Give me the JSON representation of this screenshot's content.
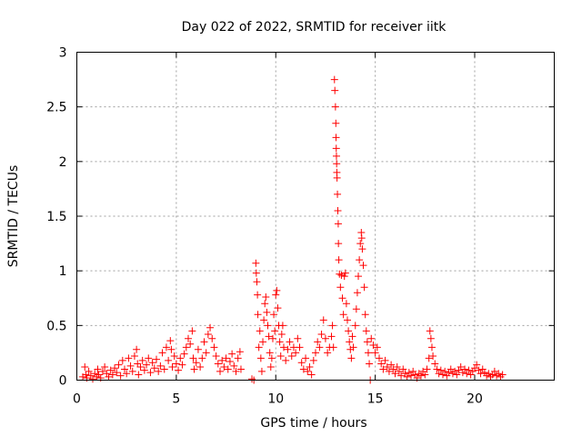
{
  "chart_data": {
    "type": "scatter",
    "title": "Day 022 of 2022, SRMTID for receiver iitk",
    "xlabel": "GPS time / hours",
    "ylabel": "SRMTID / TECUs",
    "xlim": [
      0,
      24
    ],
    "ylim": [
      0,
      3
    ],
    "x_ticks": [
      0,
      5,
      10,
      15,
      20
    ],
    "x_tick_labels": [
      "0",
      "5",
      "10",
      "15",
      "20"
    ],
    "y_ticks": [
      0,
      0.5,
      1,
      1.5,
      2,
      2.5,
      3
    ],
    "y_tick_labels": [
      "0",
      "0.5",
      "1",
      "1.5",
      "2",
      "2.5",
      "3"
    ],
    "grid": true,
    "marker": "+",
    "color": "#ff0000",
    "series": [
      {
        "name": "SRMTID",
        "points": [
          [
            0.3,
            0.03
          ],
          [
            0.4,
            0.12
          ],
          [
            0.45,
            0.05
          ],
          [
            0.5,
            0.02
          ],
          [
            0.6,
            0.08
          ],
          [
            0.7,
            0.04
          ],
          [
            0.8,
            0.01
          ],
          [
            0.9,
            0.06
          ],
          [
            1.0,
            0.03
          ],
          [
            1.05,
            0.1
          ],
          [
            1.1,
            0.05
          ],
          [
            1.2,
            0.02
          ],
          [
            1.3,
            0.08
          ],
          [
            1.4,
            0.12
          ],
          [
            1.5,
            0.06
          ],
          [
            1.6,
            0.03
          ],
          [
            1.7,
            0.09
          ],
          [
            1.8,
            0.05
          ],
          [
            1.9,
            0.11
          ],
          [
            2.0,
            0.07
          ],
          [
            2.1,
            0.14
          ],
          [
            2.2,
            0.04
          ],
          [
            2.3,
            0.18
          ],
          [
            2.4,
            0.1
          ],
          [
            2.5,
            0.06
          ],
          [
            2.6,
            0.2
          ],
          [
            2.7,
            0.13
          ],
          [
            2.8,
            0.08
          ],
          [
            2.9,
            0.22
          ],
          [
            3.0,
            0.28
          ],
          [
            3.05,
            0.15
          ],
          [
            3.1,
            0.05
          ],
          [
            3.2,
            0.12
          ],
          [
            3.3,
            0.18
          ],
          [
            3.4,
            0.09
          ],
          [
            3.5,
            0.14
          ],
          [
            3.6,
            0.2
          ],
          [
            3.7,
            0.07
          ],
          [
            3.8,
            0.16
          ],
          [
            3.9,
            0.11
          ],
          [
            4.0,
            0.19
          ],
          [
            4.1,
            0.08
          ],
          [
            4.2,
            0.13
          ],
          [
            4.3,
            0.25
          ],
          [
            4.4,
            0.1
          ],
          [
            4.5,
            0.3
          ],
          [
            4.6,
            0.18
          ],
          [
            4.7,
            0.36
          ],
          [
            4.75,
            0.28
          ],
          [
            4.8,
            0.12
          ],
          [
            4.9,
            0.22
          ],
          [
            5.0,
            0.15
          ],
          [
            5.1,
            0.09
          ],
          [
            5.2,
            0.2
          ],
          [
            5.3,
            0.14
          ],
          [
            5.4,
            0.24
          ],
          [
            5.5,
            0.3
          ],
          [
            5.6,
            0.38
          ],
          [
            5.7,
            0.33
          ],
          [
            5.8,
            0.45
          ],
          [
            5.85,
            0.2
          ],
          [
            5.9,
            0.1
          ],
          [
            6.0,
            0.16
          ],
          [
            6.1,
            0.28
          ],
          [
            6.2,
            0.12
          ],
          [
            6.3,
            0.2
          ],
          [
            6.4,
            0.35
          ],
          [
            6.5,
            0.25
          ],
          [
            6.6,
            0.42
          ],
          [
            6.7,
            0.48
          ],
          [
            6.8,
            0.38
          ],
          [
            6.9,
            0.3
          ],
          [
            7.0,
            0.22
          ],
          [
            7.1,
            0.15
          ],
          [
            7.2,
            0.08
          ],
          [
            7.3,
            0.18
          ],
          [
            7.4,
            0.12
          ],
          [
            7.5,
            0.2
          ],
          [
            7.6,
            0.1
          ],
          [
            7.7,
            0.17
          ],
          [
            7.8,
            0.24
          ],
          [
            7.9,
            0.13
          ],
          [
            8.0,
            0.08
          ],
          [
            8.1,
            0.2
          ],
          [
            8.2,
            0.26
          ],
          [
            8.25,
            0.1
          ],
          [
            8.8,
            0.01
          ],
          [
            8.9,
            0.0
          ],
          [
            9.0,
            1.07
          ],
          [
            9.02,
            0.98
          ],
          [
            9.05,
            0.9
          ],
          [
            9.08,
            0.78
          ],
          [
            9.1,
            0.6
          ],
          [
            9.15,
            0.3
          ],
          [
            9.2,
            0.45
          ],
          [
            9.25,
            0.2
          ],
          [
            9.3,
            0.08
          ],
          [
            9.35,
            0.35
          ],
          [
            9.4,
            0.55
          ],
          [
            9.45,
            0.7
          ],
          [
            9.5,
            0.76
          ],
          [
            9.55,
            0.62
          ],
          [
            9.6,
            0.5
          ],
          [
            9.65,
            0.4
          ],
          [
            9.7,
            0.25
          ],
          [
            9.75,
            0.12
          ],
          [
            9.8,
            0.2
          ],
          [
            9.85,
            0.38
          ],
          [
            9.9,
            0.6
          ],
          [
            9.95,
            0.45
          ],
          [
            10.0,
            0.78
          ],
          [
            10.05,
            0.82
          ],
          [
            10.1,
            0.66
          ],
          [
            10.15,
            0.5
          ],
          [
            10.2,
            0.35
          ],
          [
            10.25,
            0.22
          ],
          [
            10.3,
            0.42
          ],
          [
            10.35,
            0.5
          ],
          [
            10.4,
            0.3
          ],
          [
            10.5,
            0.18
          ],
          [
            10.6,
            0.28
          ],
          [
            10.7,
            0.35
          ],
          [
            10.8,
            0.22
          ],
          [
            10.9,
            0.3
          ],
          [
            11.0,
            0.25
          ],
          [
            11.1,
            0.38
          ],
          [
            11.2,
            0.3
          ],
          [
            11.3,
            0.16
          ],
          [
            11.4,
            0.1
          ],
          [
            11.5,
            0.2
          ],
          [
            11.6,
            0.08
          ],
          [
            11.7,
            0.12
          ],
          [
            11.8,
            0.05
          ],
          [
            11.9,
            0.18
          ],
          [
            12.0,
            0.25
          ],
          [
            12.1,
            0.35
          ],
          [
            12.2,
            0.3
          ],
          [
            12.3,
            0.42
          ],
          [
            12.4,
            0.55
          ],
          [
            12.5,
            0.38
          ],
          [
            12.6,
            0.25
          ],
          [
            12.7,
            0.3
          ],
          [
            12.8,
            0.4
          ],
          [
            12.85,
            0.5
          ],
          [
            12.9,
            0.3
          ],
          [
            12.95,
            2.75
          ],
          [
            12.97,
            2.65
          ],
          [
            13.0,
            2.5
          ],
          [
            13.02,
            2.35
          ],
          [
            13.03,
            2.22
          ],
          [
            13.04,
            2.12
          ],
          [
            13.05,
            2.05
          ],
          [
            13.06,
            1.98
          ],
          [
            13.07,
            1.9
          ],
          [
            13.08,
            1.85
          ],
          [
            13.1,
            1.7
          ],
          [
            13.12,
            1.55
          ],
          [
            13.14,
            1.43
          ],
          [
            13.15,
            1.25
          ],
          [
            13.17,
            1.1
          ],
          [
            13.2,
            0.97
          ],
          [
            13.25,
            0.85
          ],
          [
            13.3,
            0.96
          ],
          [
            13.35,
            0.75
          ],
          [
            13.4,
            0.6
          ],
          [
            13.45,
            0.95
          ],
          [
            13.5,
            0.98
          ],
          [
            13.55,
            0.7
          ],
          [
            13.6,
            0.55
          ],
          [
            13.65,
            0.45
          ],
          [
            13.7,
            0.35
          ],
          [
            13.75,
            0.28
          ],
          [
            13.8,
            0.2
          ],
          [
            13.85,
            0.4
          ],
          [
            13.9,
            0.3
          ],
          [
            14.0,
            0.5
          ],
          [
            14.05,
            0.65
          ],
          [
            14.1,
            0.8
          ],
          [
            14.15,
            0.95
          ],
          [
            14.2,
            1.1
          ],
          [
            14.25,
            1.25
          ],
          [
            14.3,
            1.35
          ],
          [
            14.32,
            1.3
          ],
          [
            14.35,
            1.2
          ],
          [
            14.4,
            1.05
          ],
          [
            14.45,
            0.85
          ],
          [
            14.5,
            0.6
          ],
          [
            14.55,
            0.45
          ],
          [
            14.6,
            0.35
          ],
          [
            14.65,
            0.25
          ],
          [
            14.7,
            0.15
          ],
          [
            14.75,
            0.0
          ],
          [
            14.8,
            0.38
          ],
          [
            14.9,
            0.32
          ],
          [
            15.0,
            0.25
          ],
          [
            15.1,
            0.3
          ],
          [
            15.2,
            0.2
          ],
          [
            15.3,
            0.15
          ],
          [
            15.4,
            0.1
          ],
          [
            15.5,
            0.18
          ],
          [
            15.6,
            0.12
          ],
          [
            15.7,
            0.08
          ],
          [
            15.8,
            0.14
          ],
          [
            15.9,
            0.1
          ],
          [
            16.0,
            0.06
          ],
          [
            16.1,
            0.12
          ],
          [
            16.2,
            0.08
          ],
          [
            16.3,
            0.04
          ],
          [
            16.4,
            0.1
          ],
          [
            16.5,
            0.06
          ],
          [
            16.6,
            0.03
          ],
          [
            16.7,
            0.07
          ],
          [
            16.8,
            0.04
          ],
          [
            16.9,
            0.08
          ],
          [
            17.0,
            0.05
          ],
          [
            17.1,
            0.02
          ],
          [
            17.2,
            0.06
          ],
          [
            17.3,
            0.04
          ],
          [
            17.4,
            0.08
          ],
          [
            17.5,
            0.05
          ],
          [
            17.6,
            0.1
          ],
          [
            17.7,
            0.2
          ],
          [
            17.75,
            0.45
          ],
          [
            17.8,
            0.38
          ],
          [
            17.85,
            0.3
          ],
          [
            17.9,
            0.22
          ],
          [
            18.0,
            0.15
          ],
          [
            18.1,
            0.1
          ],
          [
            18.2,
            0.06
          ],
          [
            18.3,
            0.09
          ],
          [
            18.4,
            0.05
          ],
          [
            18.5,
            0.08
          ],
          [
            18.6,
            0.04
          ],
          [
            18.7,
            0.07
          ],
          [
            18.8,
            0.1
          ],
          [
            18.9,
            0.06
          ],
          [
            19.0,
            0.08
          ],
          [
            19.1,
            0.05
          ],
          [
            19.2,
            0.09
          ],
          [
            19.3,
            0.12
          ],
          [
            19.4,
            0.07
          ],
          [
            19.5,
            0.1
          ],
          [
            19.6,
            0.06
          ],
          [
            19.7,
            0.09
          ],
          [
            19.8,
            0.05
          ],
          [
            19.9,
            0.08
          ],
          [
            20.0,
            0.11
          ],
          [
            20.1,
            0.14
          ],
          [
            20.2,
            0.09
          ],
          [
            20.3,
            0.06
          ],
          [
            20.4,
            0.1
          ],
          [
            20.5,
            0.07
          ],
          [
            20.6,
            0.04
          ],
          [
            20.7,
            0.06
          ],
          [
            20.8,
            0.03
          ],
          [
            20.9,
            0.05
          ],
          [
            21.0,
            0.08
          ],
          [
            21.1,
            0.04
          ],
          [
            21.2,
            0.06
          ],
          [
            21.3,
            0.03
          ],
          [
            21.4,
            0.05
          ]
        ]
      }
    ]
  }
}
